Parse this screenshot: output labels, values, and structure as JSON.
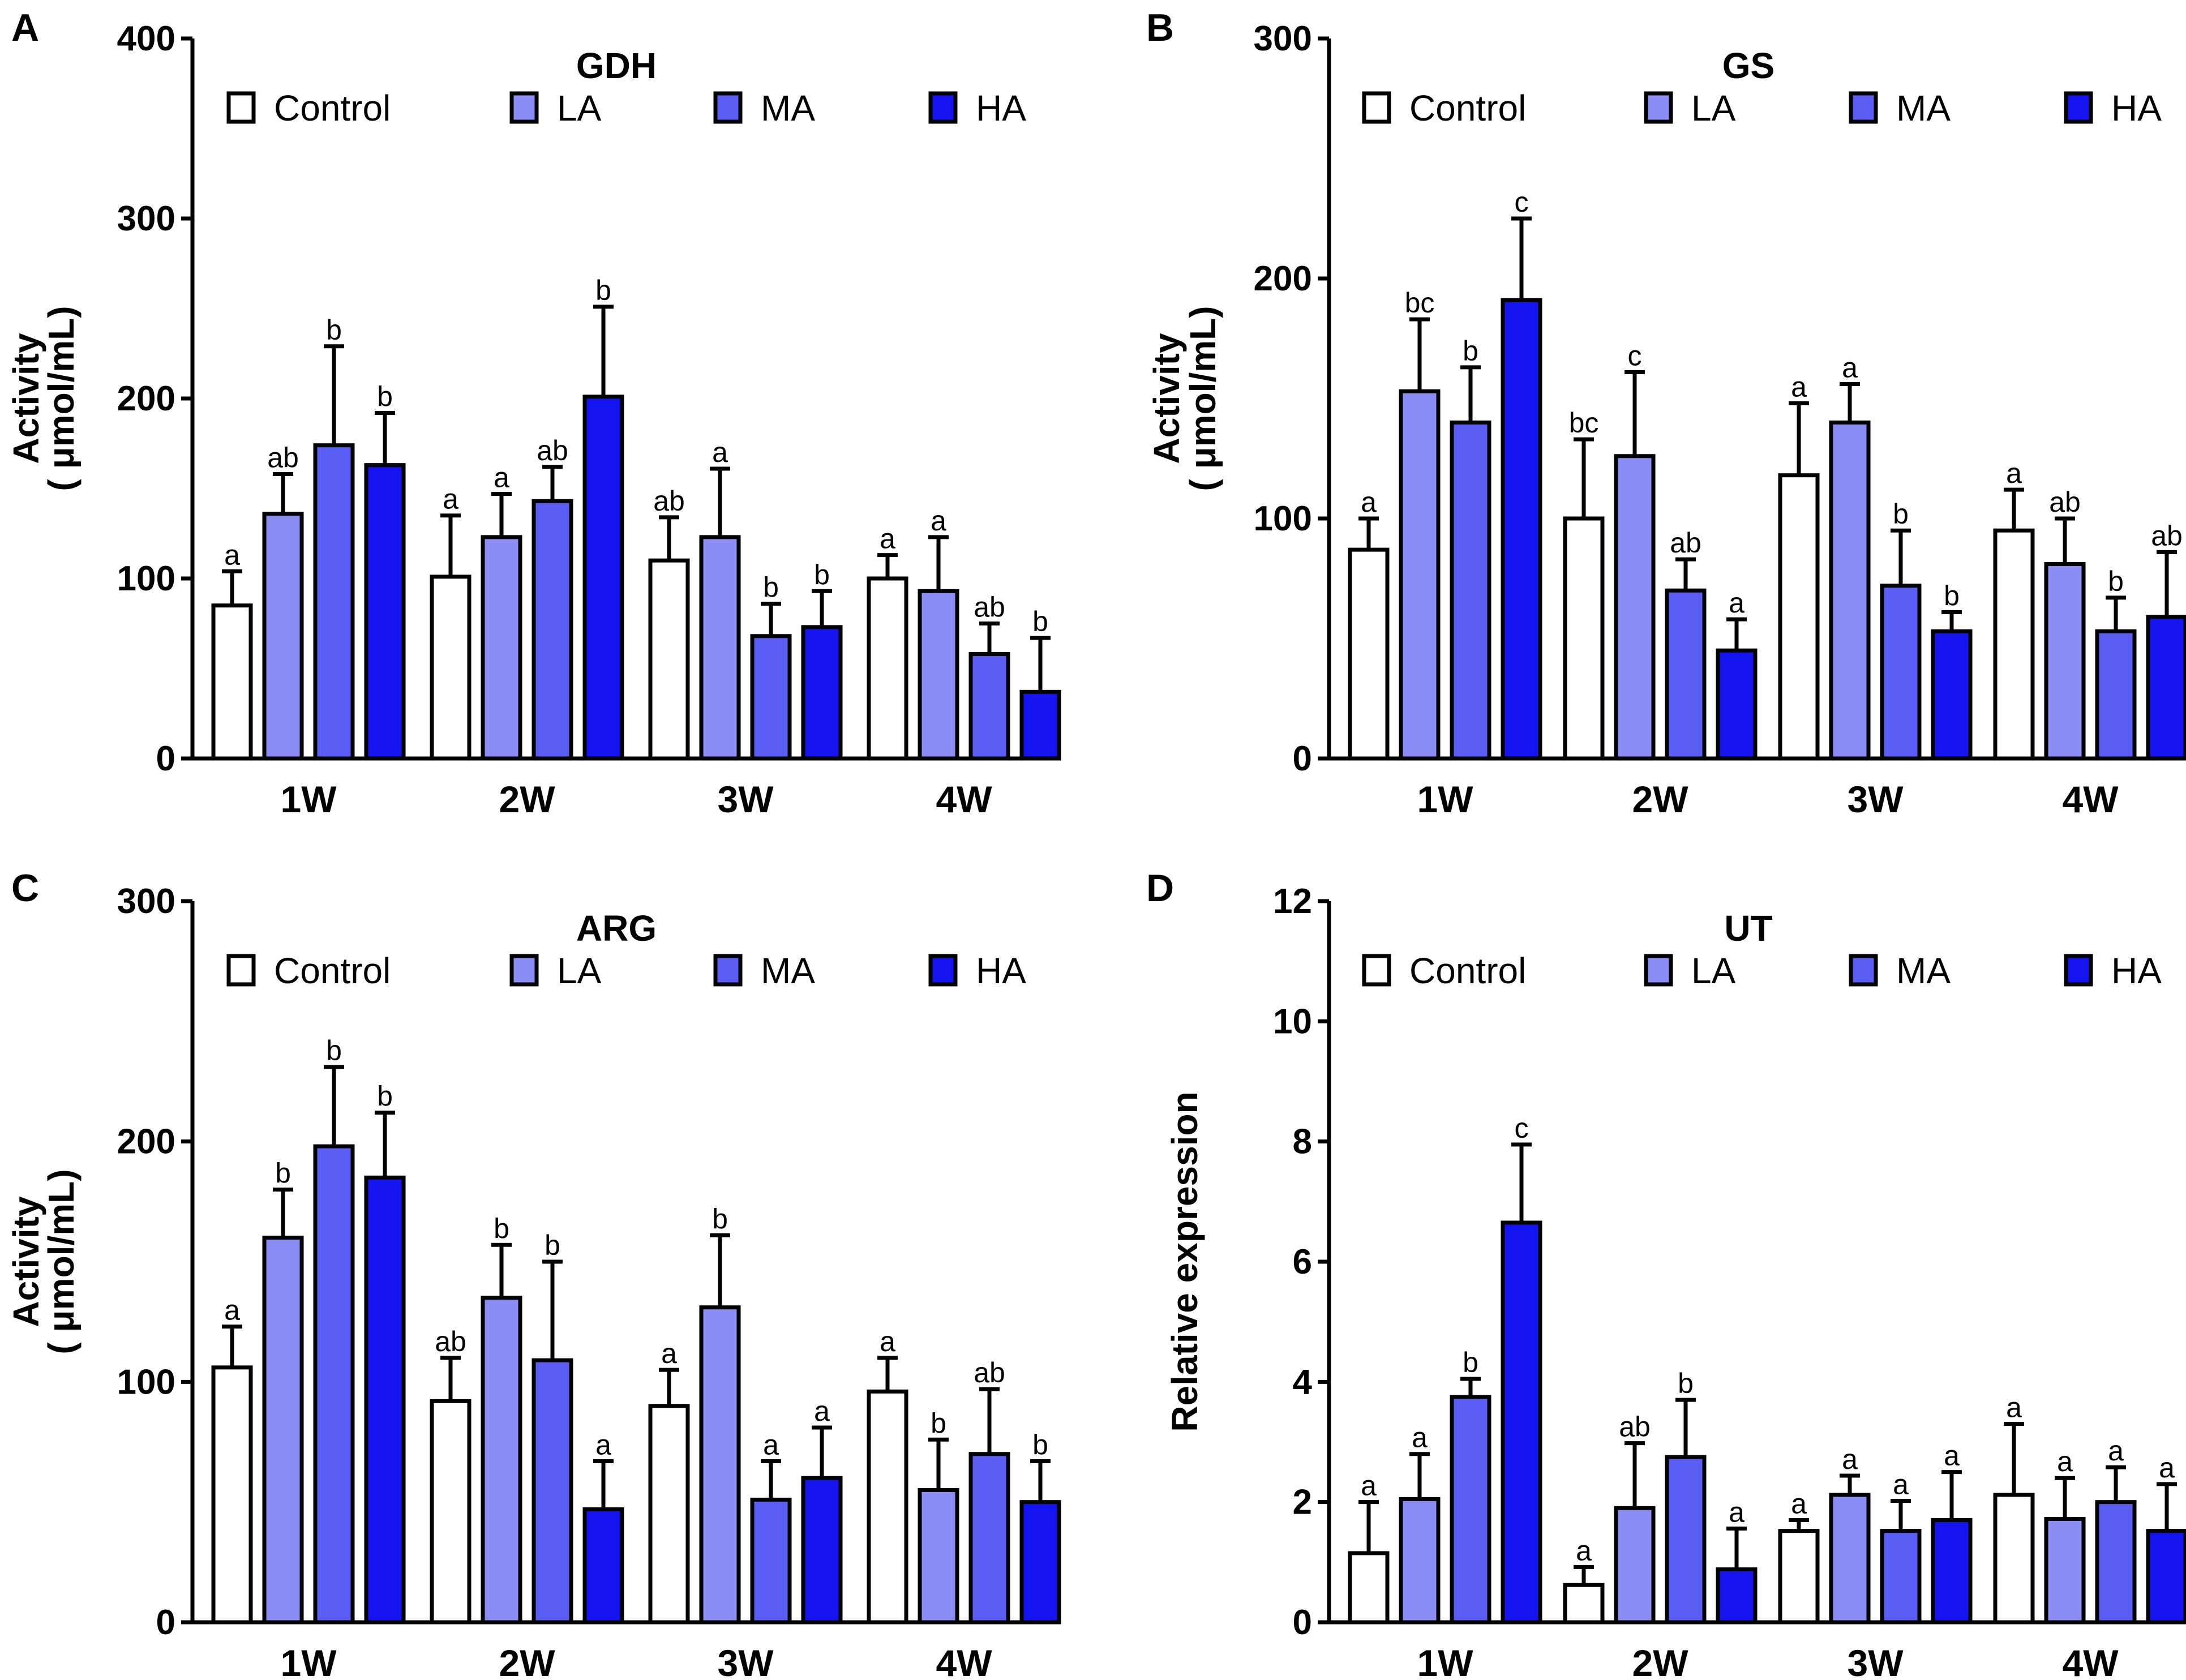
{
  "figure": {
    "legend_entries": [
      "Control",
      "LA",
      "MA",
      "HA"
    ],
    "series_colors": [
      "#ffffff",
      "#8b8ef4",
      "#5b5ef5",
      "#1414f0"
    ]
  },
  "chart_data": [
    {
      "panel": "A",
      "type": "bar",
      "title": "GDH",
      "ylabel_line1": "Activity",
      "ylabel_line2": "( μmol/mL)",
      "xlabel": "",
      "categories": [
        "1W",
        "2W",
        "3W",
        "4W"
      ],
      "ylim": [
        0,
        400
      ],
      "yticks": [
        0,
        100,
        200,
        300,
        400
      ],
      "legend_position": "top",
      "series": [
        {
          "name": "Control",
          "values": [
            85,
            101,
            110,
            100
          ],
          "errors": [
            19,
            34,
            24,
            13
          ],
          "labels": [
            "a",
            "a",
            "ab",
            "a"
          ]
        },
        {
          "name": "LA",
          "values": [
            136,
            123,
            123,
            93
          ],
          "errors": [
            22,
            24,
            38,
            30
          ],
          "labels": [
            "ab",
            "a",
            "a",
            "a"
          ]
        },
        {
          "name": "MA",
          "values": [
            174,
            143,
            68,
            58
          ],
          "errors": [
            55,
            19,
            18,
            17
          ],
          "labels": [
            "b",
            "ab",
            "b",
            "ab"
          ]
        },
        {
          "name": "HA",
          "values": [
            163,
            201,
            73,
            37
          ],
          "errors": [
            29,
            50,
            20,
            30
          ],
          "labels": [
            "b",
            "b",
            "b",
            "b"
          ]
        }
      ]
    },
    {
      "panel": "B",
      "type": "bar",
      "title": "GS",
      "ylabel_line1": "Activity",
      "ylabel_line2": "( μmol/mL)",
      "xlabel": "",
      "categories": [
        "1W",
        "2W",
        "3W",
        "4W"
      ],
      "ylim": [
        0,
        300
      ],
      "yticks": [
        0,
        100,
        200,
        300
      ],
      "legend_position": "top",
      "series": [
        {
          "name": "Control",
          "values": [
            87,
            100,
            118,
            95
          ],
          "errors": [
            13,
            33,
            30,
            17
          ],
          "labels": [
            "a",
            "bc",
            "a",
            "a"
          ]
        },
        {
          "name": "LA",
          "values": [
            153,
            126,
            140,
            81
          ],
          "errors": [
            30,
            35,
            16,
            19
          ],
          "labels": [
            "bc",
            "c",
            "a",
            "ab"
          ]
        },
        {
          "name": "MA",
          "values": [
            140,
            70,
            72,
            53
          ],
          "errors": [
            23,
            13,
            23,
            14
          ],
          "labels": [
            "b",
            "ab",
            "b",
            "b"
          ]
        },
        {
          "name": "HA",
          "values": [
            191,
            45,
            53,
            59
          ],
          "errors": [
            34,
            13,
            8,
            27
          ],
          "labels": [
            "c",
            "a",
            "b",
            "ab"
          ]
        }
      ]
    },
    {
      "panel": "C",
      "type": "bar",
      "title": "ARG",
      "ylabel_line1": "Activity",
      "ylabel_line2": "( μmol/mL)",
      "xlabel": "",
      "categories": [
        "1W",
        "2W",
        "3W",
        "4W"
      ],
      "ylim": [
        0,
        300
      ],
      "yticks": [
        0,
        100,
        200,
        300
      ],
      "legend_position": "top",
      "series": [
        {
          "name": "Control",
          "values": [
            106,
            92,
            90,
            96
          ],
          "errors": [
            17,
            18,
            15,
            14
          ],
          "labels": [
            "a",
            "ab",
            "a",
            "a"
          ]
        },
        {
          "name": "LA",
          "values": [
            160,
            135,
            131,
            55
          ],
          "errors": [
            20,
            22,
            30,
            21
          ],
          "labels": [
            "b",
            "b",
            "b",
            "b"
          ]
        },
        {
          "name": "MA",
          "values": [
            198,
            109,
            51,
            70
          ],
          "errors": [
            33,
            41,
            16,
            27
          ],
          "labels": [
            "b",
            "b",
            "a",
            "ab"
          ]
        },
        {
          "name": "HA",
          "values": [
            185,
            47,
            60,
            50
          ],
          "errors": [
            27,
            20,
            21,
            17
          ],
          "labels": [
            "b",
            "a",
            "a",
            "b"
          ]
        }
      ]
    },
    {
      "panel": "D",
      "type": "bar",
      "title": "UT",
      "ylabel_line1": "Relative expression",
      "ylabel_line2": "",
      "xlabel": "",
      "categories": [
        "1W",
        "2W",
        "3W",
        "4W"
      ],
      "ylim": [
        0,
        12
      ],
      "yticks": [
        0,
        2,
        4,
        6,
        8,
        10,
        12
      ],
      "legend_position": "top",
      "series": [
        {
          "name": "Control",
          "values": [
            1.15,
            0.62,
            1.52,
            2.12
          ],
          "errors": [
            0.85,
            0.3,
            0.18,
            1.18
          ],
          "labels": [
            "a",
            "a",
            "a",
            "a"
          ]
        },
        {
          "name": "LA",
          "values": [
            2.05,
            1.9,
            2.12,
            1.72
          ],
          "errors": [
            0.75,
            1.08,
            0.32,
            0.68
          ],
          "labels": [
            "a",
            "ab",
            "a",
            "a"
          ]
        },
        {
          "name": "MA",
          "values": [
            3.75,
            2.75,
            1.52,
            2.0
          ],
          "errors": [
            0.3,
            0.95,
            0.5,
            0.58
          ],
          "labels": [
            "b",
            "b",
            "a",
            "a"
          ]
        },
        {
          "name": "HA",
          "values": [
            6.65,
            0.88,
            1.7,
            1.52
          ],
          "errors": [
            1.3,
            0.68,
            0.8,
            0.78
          ],
          "labels": [
            "c",
            "a",
            "a",
            "a"
          ]
        }
      ]
    }
  ]
}
